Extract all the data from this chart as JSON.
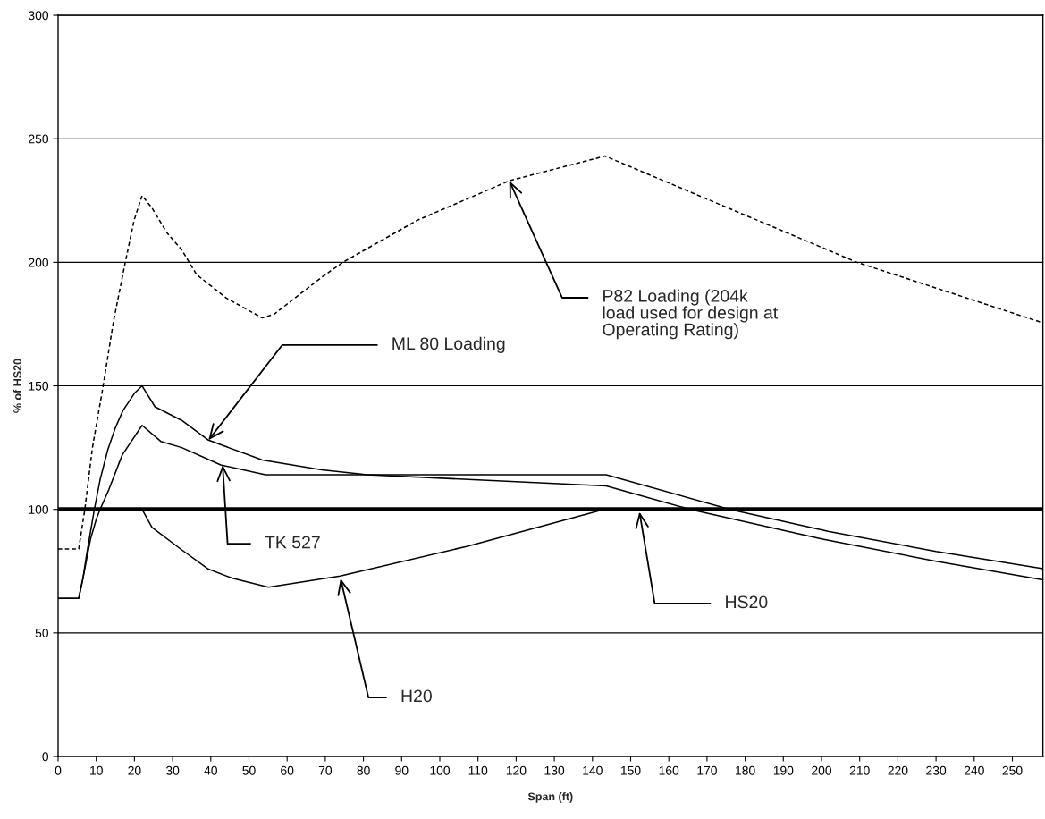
{
  "chart_data": {
    "type": "line",
    "xlabel": "Span (ft)",
    "ylabel": "% of HS20",
    "xlim": [
      0,
      258
    ],
    "xticks": [
      0,
      10,
      20,
      30,
      40,
      50,
      60,
      70,
      80,
      90,
      100,
      110,
      120,
      130,
      140,
      150,
      160,
      170,
      180,
      190,
      200,
      210,
      220,
      230,
      240,
      250
    ],
    "ylim": [
      0,
      300
    ],
    "yticks": [
      0,
      50,
      100,
      150,
      200,
      250,
      300
    ],
    "grid": "y",
    "legend": false,
    "marker": "none",
    "series": [
      {
        "color": "#000000",
        "line_style": "dashed",
        "x": [
          0,
          5.4,
          7,
          9,
          11.7,
          14.5,
          17.6,
          19.9,
          22,
          24.6,
          28.5,
          32.4,
          36.3,
          44.1,
          53.5,
          56.6,
          69.1,
          74.6,
          94.1,
          118.2,
          143.3,
          209.3,
          258
        ],
        "values": [
          84,
          84,
          100,
          125,
          149,
          176,
          200,
          217,
          227,
          222,
          212,
          205,
          195,
          185.5,
          177.5,
          179,
          194,
          200,
          217,
          233,
          243,
          200,
          175.5
        ]
      },
      {
        "color": "#000000",
        "line_style": "solid",
        "x": [
          0,
          5.4,
          6.5,
          7.5,
          8.5,
          9.5,
          11,
          13,
          15,
          17,
          20,
          22,
          25.4,
          32.4,
          39.4,
          53.5,
          69.1,
          81,
          143.6,
          165.6,
          200,
          230,
          258
        ],
        "values": [
          64,
          64,
          72,
          82,
          91,
          100,
          112,
          124,
          133,
          140,
          147,
          150,
          141.5,
          136,
          128,
          120,
          116,
          114,
          109.5,
          100,
          88,
          79,
          71.5
        ]
      },
      {
        "color": "#000000",
        "line_style": "solid",
        "x": [
          0,
          5.4,
          6.5,
          7.5,
          8.5,
          10,
          11,
          13.3,
          16.8,
          22,
          26.9,
          32.4,
          42.6,
          54.3,
          143.6,
          176,
          202,
          230,
          258
        ],
        "values": [
          64,
          64,
          72,
          80,
          88,
          96,
          100,
          108,
          122,
          134,
          127.5,
          125,
          118,
          114,
          114,
          100,
          91,
          83,
          76
        ]
      },
      {
        "color": "#000000",
        "line_style": "solid",
        "x": [
          22,
          24.6,
          32.4,
          39.4,
          45.7,
          55.1,
          73.9,
          107,
          143
        ],
        "values": [
          100,
          92.7,
          83.6,
          75.8,
          72.1,
          68.5,
          73,
          85,
          100
        ]
      }
    ],
    "ref_lines": [
      {
        "axis": "y",
        "value": 100,
        "color": "#000000"
      }
    ],
    "annotations": [
      {
        "text": "P82 Loading (204k\nload used for design at\nOperating Rating)",
        "x": 118.2,
        "y": 233
      },
      {
        "text": "ML 80 Loading",
        "x": 39.4,
        "y": 128
      },
      {
        "text": "TK 527",
        "x": 43.1,
        "y": 118
      },
      {
        "text": "H20",
        "x": 74,
        "y": 72
      },
      {
        "text": "HS20",
        "x": 152.3,
        "y": 99
      }
    ]
  }
}
